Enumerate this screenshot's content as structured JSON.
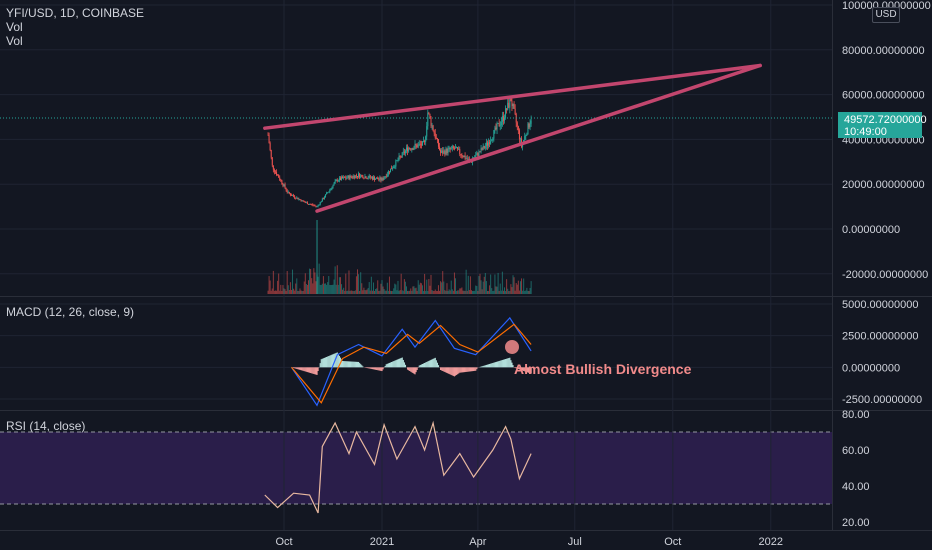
{
  "header": {
    "symbol": "YFI/USD, 1D, COINBASE",
    "vol1": "Vol",
    "vol2": "Vol",
    "currency": "USD"
  },
  "price_label": {
    "value": "49572.72000000",
    "time": "10:49:00"
  },
  "macd": {
    "title": "MACD (12, 26, close, 9)",
    "annotation": "Almost Bullish Divergence"
  },
  "rsi": {
    "title": "RSI (14, close)"
  },
  "colors": {
    "bg": "#131722",
    "grid": "#1f2433",
    "up": "#26a69a",
    "down": "#ef5350",
    "trend": "#c2466e",
    "macd": "#2962ff",
    "signal": "#ff6d00",
    "rsi_line": "#e8b8a0",
    "rsi_band": "#2a1e4a",
    "price_tag": "#26a69a"
  },
  "chart_data": [
    {
      "type": "candlestick",
      "title": "YFI/USD, 1D, COINBASE",
      "ylim": [
        -30000,
        100000
      ],
      "y_ticks": [
        "100000.00000000",
        "80000.00000000",
        "60000.00000000",
        "40000.00000000",
        "20000.00000000",
        "0.00000000",
        "-20000.00000000"
      ],
      "x_ticks": [
        "Oct",
        "2021",
        "Apr",
        "Jul",
        "Oct",
        "2022"
      ],
      "last_price": 49572.72,
      "path": [
        {
          "date": "2020-09-16",
          "price": 42000
        },
        {
          "date": "2020-09-20",
          "price": 28000
        },
        {
          "date": "2020-10-05",
          "price": 16000
        },
        {
          "date": "2020-10-20",
          "price": 12000
        },
        {
          "date": "2020-11-01",
          "price": 10000
        },
        {
          "date": "2020-11-20",
          "price": 22000
        },
        {
          "date": "2020-12-10",
          "price": 24000
        },
        {
          "date": "2021-01-01",
          "price": 22000
        },
        {
          "date": "2021-01-25",
          "price": 36000
        },
        {
          "date": "2021-02-10",
          "price": 38000
        },
        {
          "date": "2021-02-13",
          "price": 52000
        },
        {
          "date": "2021-02-25",
          "price": 34000
        },
        {
          "date": "2021-03-10",
          "price": 36000
        },
        {
          "date": "2021-03-25",
          "price": 30000
        },
        {
          "date": "2021-04-10",
          "price": 38000
        },
        {
          "date": "2021-04-25",
          "price": 50000
        },
        {
          "date": "2021-05-02",
          "price": 58000
        },
        {
          "date": "2021-05-12",
          "price": 37000
        },
        {
          "date": "2021-05-21",
          "price": 49572.72
        }
      ],
      "trendlines": [
        {
          "from": {
            "date": "2020-09-13",
            "price": 45000
          },
          "to": {
            "date": "2021-12-22",
            "price": 73000
          }
        },
        {
          "from": {
            "date": "2020-11-01",
            "price": 8000
          },
          "to": {
            "date": "2021-12-22",
            "price": 73000
          }
        }
      ],
      "volume": {
        "note": "volume histogram along bottom of price pane"
      }
    },
    {
      "type": "line",
      "title": "MACD (12, 26, close, 9)",
      "ylim": [
        -2800,
        5500
      ],
      "y_ticks": [
        "5000.00000000",
        "2500.00000000",
        "0.00000000",
        "-2500.00000000"
      ],
      "series": [
        {
          "name": "MACD",
          "points": [
            {
              "date": "2020-10-08",
              "value": 0
            },
            {
              "date": "2020-11-01",
              "value": -3000
            },
            {
              "date": "2020-11-20",
              "value": 1000
            },
            {
              "date": "2020-12-10",
              "value": 1800
            },
            {
              "date": "2021-01-01",
              "value": 900
            },
            {
              "date": "2021-01-20",
              "value": 3000
            },
            {
              "date": "2021-02-01",
              "value": 1600
            },
            {
              "date": "2021-02-20",
              "value": 3700
            },
            {
              "date": "2021-03-10",
              "value": 1500
            },
            {
              "date": "2021-03-30",
              "value": 1000
            },
            {
              "date": "2021-05-01",
              "value": 3900
            },
            {
              "date": "2021-05-21",
              "value": 1300
            }
          ]
        },
        {
          "name": "Signal",
          "points": [
            {
              "date": "2020-10-08",
              "value": 0
            },
            {
              "date": "2020-11-05",
              "value": -2800
            },
            {
              "date": "2020-11-25",
              "value": 700
            },
            {
              "date": "2020-12-15",
              "value": 1600
            },
            {
              "date": "2021-01-05",
              "value": 1100
            },
            {
              "date": "2021-01-25",
              "value": 2600
            },
            {
              "date": "2021-02-05",
              "value": 1900
            },
            {
              "date": "2021-02-25",
              "value": 3300
            },
            {
              "date": "2021-03-15",
              "value": 1800
            },
            {
              "date": "2021-04-01",
              "value": 1200
            },
            {
              "date": "2021-05-05",
              "value": 3400
            },
            {
              "date": "2021-05-21",
              "value": 1800
            }
          ]
        }
      ]
    },
    {
      "type": "line",
      "title": "RSI (14, close)",
      "ylim": [
        20,
        80
      ],
      "y_ticks": [
        "80.00",
        "60.00",
        "40.00",
        "20.00"
      ],
      "bands": [
        70,
        30
      ],
      "series": [
        {
          "name": "RSI",
          "points": [
            {
              "date": "2020-09-13",
              "value": 35
            },
            {
              "date": "2020-09-25",
              "value": 28
            },
            {
              "date": "2020-10-10",
              "value": 36
            },
            {
              "date": "2020-10-25",
              "value": 35
            },
            {
              "date": "2020-11-02",
              "value": 25
            },
            {
              "date": "2020-11-06",
              "value": 62
            },
            {
              "date": "2020-11-18",
              "value": 75
            },
            {
              "date": "2020-12-01",
              "value": 58
            },
            {
              "date": "2020-12-08",
              "value": 70
            },
            {
              "date": "2020-12-25",
              "value": 52
            },
            {
              "date": "2021-01-03",
              "value": 74
            },
            {
              "date": "2021-01-15",
              "value": 55
            },
            {
              "date": "2021-02-01",
              "value": 73
            },
            {
              "date": "2021-02-10",
              "value": 60
            },
            {
              "date": "2021-02-18",
              "value": 75
            },
            {
              "date": "2021-02-28",
              "value": 46
            },
            {
              "date": "2021-03-15",
              "value": 58
            },
            {
              "date": "2021-03-28",
              "value": 45
            },
            {
              "date": "2021-04-15",
              "value": 60
            },
            {
              "date": "2021-04-27",
              "value": 73
            },
            {
              "date": "2021-05-02",
              "value": 66
            },
            {
              "date": "2021-05-10",
              "value": 44
            },
            {
              "date": "2021-05-21",
              "value": 58
            }
          ]
        }
      ]
    }
  ]
}
